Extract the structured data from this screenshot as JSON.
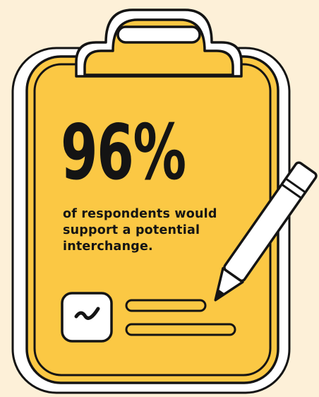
{
  "colors": {
    "background": "#fdf0d8",
    "clipboard": "#fbc844",
    "clipboard_shadow": "#f6b735",
    "outline": "#141414",
    "paper": "#ffffff"
  },
  "stat": {
    "value": "96%",
    "caption": "of respondents would support a potential interchange."
  },
  "icons": {
    "clip": "clipboard-clip-icon",
    "pencil": "pencil-icon",
    "check": "check-icon"
  }
}
